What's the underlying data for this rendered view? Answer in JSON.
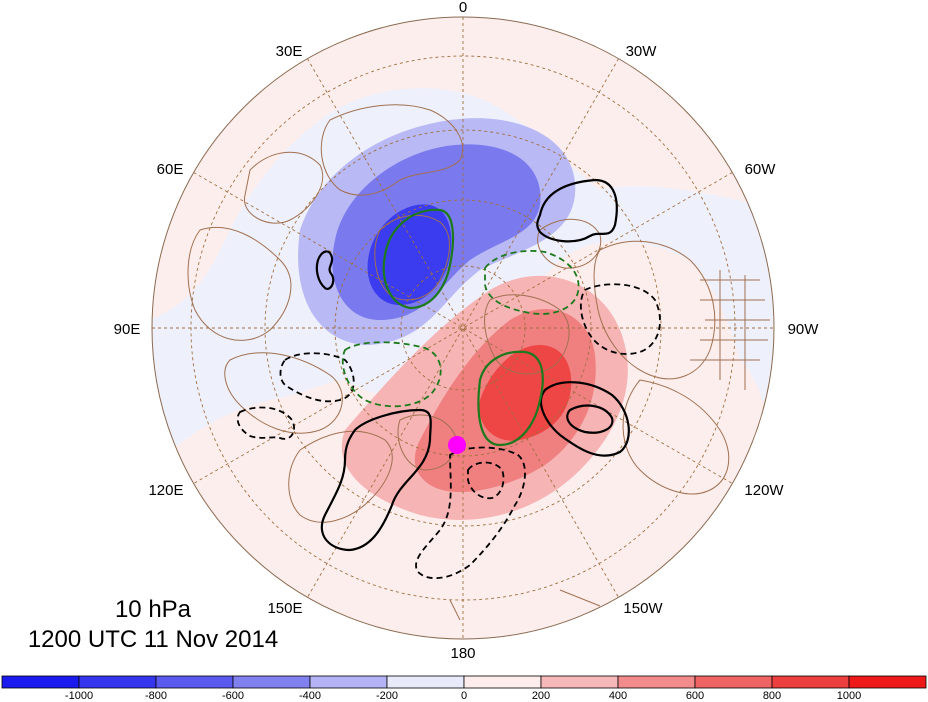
{
  "map": {
    "projection": "north-polar-stereographic",
    "level": "10 hPa",
    "valid_time": "1200 UTC 11 Nov 2014",
    "meridian_labels": [
      {
        "name": "label-0",
        "text": "0"
      },
      {
        "name": "label-30W",
        "text": "30W"
      },
      {
        "name": "label-60W",
        "text": "60W"
      },
      {
        "name": "label-90W",
        "text": "90W"
      },
      {
        "name": "label-120W",
        "text": "120W"
      },
      {
        "name": "label-150W",
        "text": "150W"
      },
      {
        "name": "label-180",
        "text": "180"
      },
      {
        "name": "label-150E",
        "text": "150E"
      },
      {
        "name": "label-120E",
        "text": "120E"
      },
      {
        "name": "label-90E",
        "text": "90E"
      },
      {
        "name": "label-60E",
        "text": "60E"
      },
      {
        "name": "label-30E",
        "text": "30E"
      }
    ],
    "colors": {
      "negative_strong": "#3b3bf0",
      "negative_mid": "#7a7aee",
      "negative_light": "#b9b9f5",
      "negative_faint": "#eef0fb",
      "positive_faint": "#fdeeee",
      "positive_light": "#f6b4b4",
      "positive_mid": "#f08080",
      "positive_strong": "#ee4545",
      "contour_black": "#000000",
      "contour_green": "#1c7a1c",
      "marker": "#ff00ff",
      "coastline": "#a07050",
      "graticule": "#a07040"
    }
  },
  "colorbar": {
    "colors": [
      "#1a1aee",
      "#3535ee",
      "#5a5aef",
      "#8080ef",
      "#b3b3f5",
      "#e8eaf9",
      "#fcedec",
      "#f6b8b8",
      "#f28c8c",
      "#ee6464",
      "#ec3f3f",
      "#ee1a1a"
    ],
    "tick_labels": [
      "-1000",
      "-800",
      "-600",
      "-400",
      "-200",
      "0",
      "200",
      "400",
      "600",
      "800",
      "1000"
    ]
  }
}
